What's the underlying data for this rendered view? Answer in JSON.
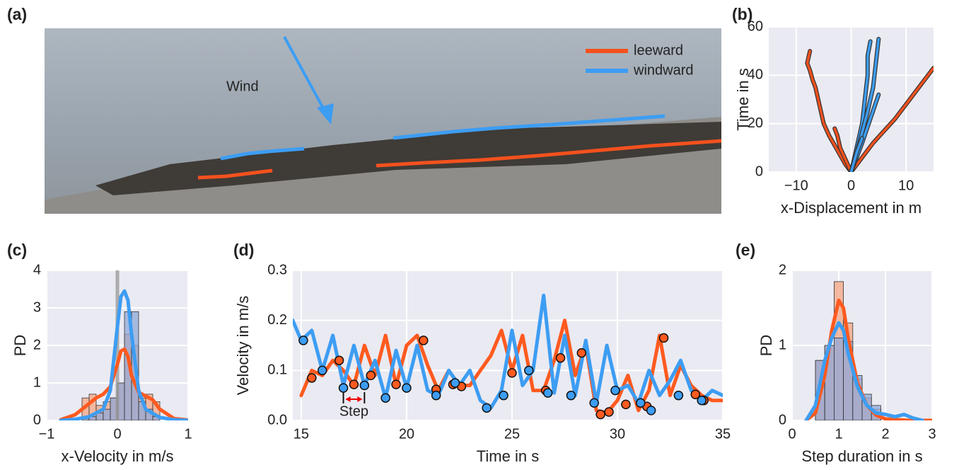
{
  "photo": {
    "label": "(a)",
    "annotation": "Wind",
    "legend": [
      {
        "name": "leeward",
        "color": "#f4511e"
      },
      {
        "name": "windward",
        "color": "#3d9df3"
      }
    ]
  },
  "chart_data": [
    {
      "type": "line",
      "label": "(b)",
      "xlabel": "x-Displacement in m",
      "ylabel": "Time in s",
      "xlim": [
        -15,
        15
      ],
      "ylim": [
        0,
        60
      ],
      "xticks": [
        {
          "value": -10,
          "label": "−10"
        },
        0,
        10
      ],
      "yticks": [
        0,
        20,
        40,
        60
      ],
      "grid": true,
      "series": [
        {
          "color": "#f4511e",
          "outline_color": "#333333",
          "x": [
            0,
            -1,
            -2,
            -3,
            -4,
            -5,
            -5.5,
            -6,
            -6.5,
            -7,
            -7.5,
            -8,
            -7.5
          ],
          "values": [
            0,
            3,
            7,
            11,
            15,
            20,
            25,
            30,
            35,
            38,
            42,
            45,
            50
          ]
        },
        {
          "color": "#f4511e",
          "outline_color": "#333333",
          "x": [
            0,
            2,
            4,
            6,
            8,
            10,
            12,
            14,
            15
          ],
          "values": [
            0,
            6,
            12,
            17,
            22,
            28,
            34,
            40,
            43
          ]
        },
        {
          "color": "#f4511e",
          "outline_color": "#333333",
          "x": [
            0,
            -1,
            -2,
            -2.5,
            -3
          ],
          "values": [
            0,
            5,
            10,
            15,
            18
          ]
        },
        {
          "color": "#3d9df3",
          "outline_color": "#333333",
          "x": [
            0,
            1,
            2,
            2.5,
            3,
            3,
            3.5
          ],
          "values": [
            0,
            10,
            20,
            30,
            40,
            48,
            54
          ]
        },
        {
          "color": "#3d9df3",
          "outline_color": "#333333",
          "x": [
            0,
            1.5,
            3,
            4,
            4.5,
            5
          ],
          "values": [
            0,
            12,
            25,
            35,
            45,
            55
          ]
        },
        {
          "color": "#3d9df3",
          "outline_color": "#333333",
          "x": [
            0,
            2,
            3.5,
            5
          ],
          "values": [
            0,
            12,
            22,
            32
          ]
        },
        {
          "color": "#3d9df3",
          "outline_color": "#333333",
          "x": [
            0,
            1,
            2
          ],
          "values": [
            0,
            8,
            14
          ]
        }
      ]
    },
    {
      "type": "histogram",
      "label": "(c)",
      "xlabel": "x-Velocity in m/s",
      "ylabel": "PD",
      "xlim": [
        -1,
        1
      ],
      "ylim": [
        0,
        4
      ],
      "xticks": [
        {
          "value": -1,
          "label": "−1"
        },
        0,
        1
      ],
      "yticks": [
        0,
        1,
        2,
        3,
        4
      ],
      "grid": true,
      "vline": 0,
      "vline_color": "#999999",
      "bins": [
        -0.5,
        -0.4,
        -0.3,
        -0.2,
        -0.1,
        0,
        0.1,
        0.2,
        0.3,
        0.4,
        0.5,
        0.6
      ],
      "series": [
        {
          "color": "#f4a582",
          "values": [
            0.6,
            0.7,
            0.4,
            0.5,
            0.6,
            1.0,
            2.3,
            2.0,
            0.6,
            0.7,
            0.5
          ]
        },
        {
          "color": "#8fa8d8",
          "values": [
            0.05,
            0.1,
            0.2,
            0.3,
            0.6,
            1.0,
            2.9,
            2.9,
            0.5,
            0.3,
            0.1
          ]
        }
      ],
      "kde": [
        {
          "color": "#ff5a1f",
          "x": [
            -0.8,
            -0.6,
            -0.4,
            -0.3,
            -0.2,
            -0.1,
            0,
            0.05,
            0.1,
            0.15,
            0.2,
            0.3,
            0.4,
            0.5,
            0.6,
            0.8,
            1.0
          ],
          "values": [
            0.02,
            0.15,
            0.45,
            0.6,
            0.7,
            0.9,
            1.5,
            1.85,
            1.9,
            1.7,
            1.2,
            0.75,
            0.65,
            0.55,
            0.3,
            0.05,
            0.01
          ]
        },
        {
          "color": "#3d9df3",
          "x": [
            -0.8,
            -0.6,
            -0.4,
            -0.2,
            -0.1,
            0,
            0.05,
            0.1,
            0.15,
            0.2,
            0.3,
            0.4,
            0.6,
            0.8,
            1.0
          ],
          "values": [
            0,
            0.03,
            0.1,
            0.3,
            0.8,
            2.5,
            3.3,
            3.45,
            3.2,
            2.3,
            0.8,
            0.3,
            0.08,
            0.02,
            0
          ]
        }
      ]
    },
    {
      "type": "line",
      "label": "(d)",
      "xlabel": "Time in s",
      "ylabel": "Velocity in m/s",
      "annotation": "Step",
      "xlim": [
        14.6,
        35
      ],
      "ylim": [
        0,
        0.3
      ],
      "xticks": [
        15,
        20,
        25,
        30,
        35
      ],
      "yticks": [
        {
          "value": 0,
          "label": "0.0"
        },
        0.1,
        0.2,
        0.3
      ],
      "grid": true,
      "series": [
        {
          "color": "#ff5a1f",
          "x": [
            15,
            15.5,
            16,
            16.5,
            17,
            17.5,
            18,
            18.5,
            19,
            19.5,
            20,
            20.5,
            21,
            21.5,
            22,
            22.5,
            23,
            23.5,
            24,
            24.5,
            25,
            25.5,
            26,
            26.5,
            27,
            27.5,
            28,
            28.5,
            29,
            29.5,
            30,
            30.5,
            31,
            31.5,
            32,
            32.5,
            33,
            33.5,
            34,
            34.5,
            35
          ],
          "values": [
            0.05,
            0.1,
            0.09,
            0.12,
            0.1,
            0.07,
            0.15,
            0.09,
            0.17,
            0.07,
            0.15,
            0.17,
            0.11,
            0.06,
            0.1,
            0.07,
            0.07,
            0.1,
            0.13,
            0.18,
            0.1,
            0.17,
            0.06,
            0.06,
            0.12,
            0.2,
            0.09,
            0.15,
            0.02,
            0.015,
            0.04,
            0.09,
            0.02,
            0.06,
            0.17,
            0.05,
            0.11,
            0.07,
            0.05,
            0.04,
            0.04
          ]
        },
        {
          "color": "#3d9df3",
          "x": [
            14.6,
            15,
            15.5,
            16,
            16.5,
            17,
            17.5,
            18,
            18.5,
            19,
            19.5,
            20,
            20.5,
            21,
            21.5,
            22,
            22.5,
            23,
            23.5,
            24,
            24.5,
            25,
            25.5,
            26,
            26.5,
            27,
            27.5,
            28,
            28.5,
            29,
            29.5,
            30,
            30.5,
            31,
            31.5,
            32,
            32.5,
            33,
            33.5,
            34,
            34.5,
            35
          ],
          "values": [
            0.2,
            0.16,
            0.18,
            0.1,
            0.17,
            0.07,
            0.15,
            0.07,
            0.12,
            0.045,
            0.14,
            0.065,
            0.15,
            0.06,
            0.05,
            0.1,
            0.07,
            0.1,
            0.04,
            0.025,
            0.06,
            0.18,
            0.07,
            0.1,
            0.25,
            0.055,
            0.17,
            0.05,
            0.16,
            0.035,
            0.15,
            0.06,
            0.07,
            0.035,
            0.1,
            0.05,
            0.08,
            0.12,
            0.06,
            0.04,
            0.06,
            0.05
          ]
        }
      ],
      "markers": [
        {
          "color": "#ff5a1f",
          "x": [
            15.5,
            16.8,
            17.5,
            18.3,
            19.5,
            20.8,
            21.4,
            22.2,
            22.6,
            25.0,
            26.6,
            27.3,
            28.3,
            29.2,
            29.6,
            30.4,
            31.4,
            32.2,
            33.7,
            34.1
          ],
          "values": [
            0.085,
            0.12,
            0.072,
            0.09,
            0.072,
            0.16,
            0.062,
            0.072,
            0.068,
            0.095,
            0.06,
            0.125,
            0.135,
            0.012,
            0.017,
            0.032,
            0.028,
            0.165,
            0.052,
            0.04
          ]
        },
        {
          "color": "#3d9df3",
          "x": [
            15.1,
            16.0,
            17.0,
            18.0,
            19.0,
            20.0,
            21.4,
            22.3,
            23.8,
            24.6,
            25.8,
            26.7,
            27.8,
            28.9,
            29.9,
            31.1,
            31.6,
            32.9,
            34.0
          ],
          "values": [
            0.16,
            0.1,
            0.065,
            0.07,
            0.045,
            0.065,
            0.05,
            0.075,
            0.025,
            0.05,
            0.1,
            0.055,
            0.05,
            0.035,
            0.06,
            0.035,
            0.02,
            0.05,
            0.04
          ]
        }
      ]
    },
    {
      "type": "histogram",
      "label": "(e)",
      "xlabel": "Step duration in s",
      "ylabel": "PD",
      "xlim": [
        0,
        3
      ],
      "ylim": [
        0,
        2
      ],
      "xticks": [
        0,
        1,
        2,
        3
      ],
      "yticks": [
        0,
        1,
        2
      ],
      "grid": true,
      "bins": [
        0.5,
        0.7,
        0.9,
        1.1,
        1.3,
        1.5,
        1.7,
        1.9
      ],
      "series": [
        {
          "color": "#f4a582",
          "values": [
            0.8,
            1.0,
            1.85,
            1.3,
            0.55,
            0.3,
            0.15
          ]
        },
        {
          "color": "#8fa8d8",
          "values": [
            0.8,
            1.0,
            1.1,
            1.05,
            0.6,
            0.35,
            0.2
          ]
        }
      ],
      "kde": [
        {
          "color": "#ff5a1f",
          "x": [
            0.3,
            0.5,
            0.7,
            0.85,
            1.0,
            1.1,
            1.2,
            1.4,
            1.6,
            1.8,
            2.0,
            2.5,
            3
          ],
          "values": [
            0,
            0.1,
            0.6,
            1.2,
            1.6,
            1.5,
            1.1,
            0.5,
            0.2,
            0.07,
            0.02,
            0,
            0
          ]
        },
        {
          "color": "#3d9df3",
          "x": [
            0.3,
            0.5,
            0.7,
            0.85,
            1.0,
            1.1,
            1.2,
            1.4,
            1.6,
            1.8,
            2.0,
            2.2,
            2.4,
            2.6,
            2.8
          ],
          "values": [
            0,
            0.2,
            0.8,
            1.1,
            1.3,
            1.2,
            0.9,
            0.45,
            0.2,
            0.1,
            0.08,
            0.05,
            0.08,
            0.03,
            0
          ]
        }
      ]
    }
  ]
}
